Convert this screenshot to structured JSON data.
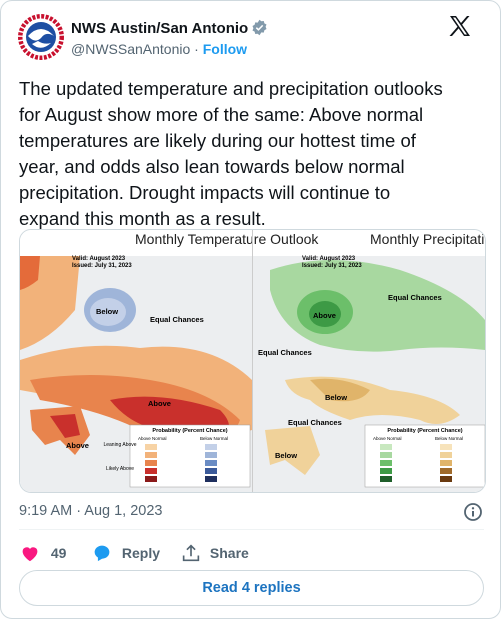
{
  "header": {
    "name": "NWS Austin/San Antonio",
    "handle": "@NWSSanAntonio",
    "separator": "·",
    "follow": "Follow"
  },
  "text_lines": [
    "The updated temperature and precipitation outlooks",
    "for August show more of the same: Above normal",
    "temperatures are likely during our hottest time of",
    "year, and odds also lean towards below normal",
    "precipitation. Drought impacts will continue to",
    "expand this month as a result."
  ],
  "media": {
    "temperature": {
      "title": "Monthly Temperature Outlook",
      "valid": "Valid:  August 2023",
      "issued": "Issued:  July 31, 2023",
      "labels": [
        "Below",
        "Equal Chances",
        "Above",
        "Above"
      ],
      "legend_title": "Probability (Percent Chance)",
      "legend_left": "Above Normal",
      "legend_right": "Below Normal",
      "leaning": "Leaning Above",
      "likely": "Likely Above"
    },
    "precipitation": {
      "title": "Monthly Precipitation Outlook",
      "valid": "Valid:  August 2023",
      "issued": "Issued:  July 31, 2023",
      "labels": [
        "Above",
        "Equal Chances",
        "Equal Chances",
        "Below",
        "Equal Chances",
        "Below"
      ],
      "legend_title": "Probability (Percent Chance)",
      "legend_left": "Above Normal",
      "legend_right": "Below Normal"
    }
  },
  "timestamp": "9:19 AM · Aug 1, 2023",
  "actions": {
    "likes": "49",
    "reply": "Reply",
    "share": "Share"
  },
  "read_replies": "Read 4 replies"
}
